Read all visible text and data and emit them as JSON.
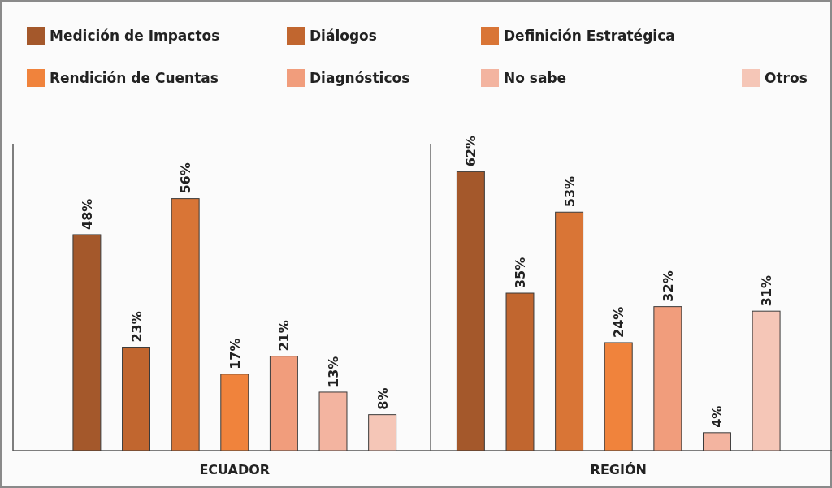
{
  "chart_data": {
    "type": "bar",
    "categories": [
      "ECUADOR",
      "REGIÓN"
    ],
    "series": [
      {
        "name": "Medición de Impactos",
        "color": "#a4582b",
        "values": [
          48,
          62
        ],
        "value_labels": [
          "48%",
          "62%"
        ]
      },
      {
        "name": "Diálogos",
        "color": "#c1662f",
        "values": [
          23,
          35
        ],
        "value_labels": [
          "23%",
          "35%"
        ]
      },
      {
        "name": "Definición Estratégica",
        "color": "#d97536",
        "values": [
          56,
          53
        ],
        "value_labels": [
          "56%",
          "53%"
        ]
      },
      {
        "name": "Rendición de Cuentas",
        "color": "#f0833c",
        "values": [
          17,
          24
        ],
        "value_labels": [
          "17%",
          "24%"
        ]
      },
      {
        "name": "Diagnósticos",
        "color": "#f19d7c",
        "values": [
          21,
          32
        ],
        "value_labels": [
          "21%",
          "32%"
        ]
      },
      {
        "name": "No sabe",
        "color": "#f3b4a0",
        "values": [
          13,
          4
        ],
        "value_labels": [
          "13%",
          "4%"
        ]
      },
      {
        "name": "Otros",
        "color": "#f5c6b7",
        "values": [
          8,
          31
        ],
        "value_labels": [
          "8%",
          "31%"
        ]
      }
    ],
    "legend": "top"
  }
}
